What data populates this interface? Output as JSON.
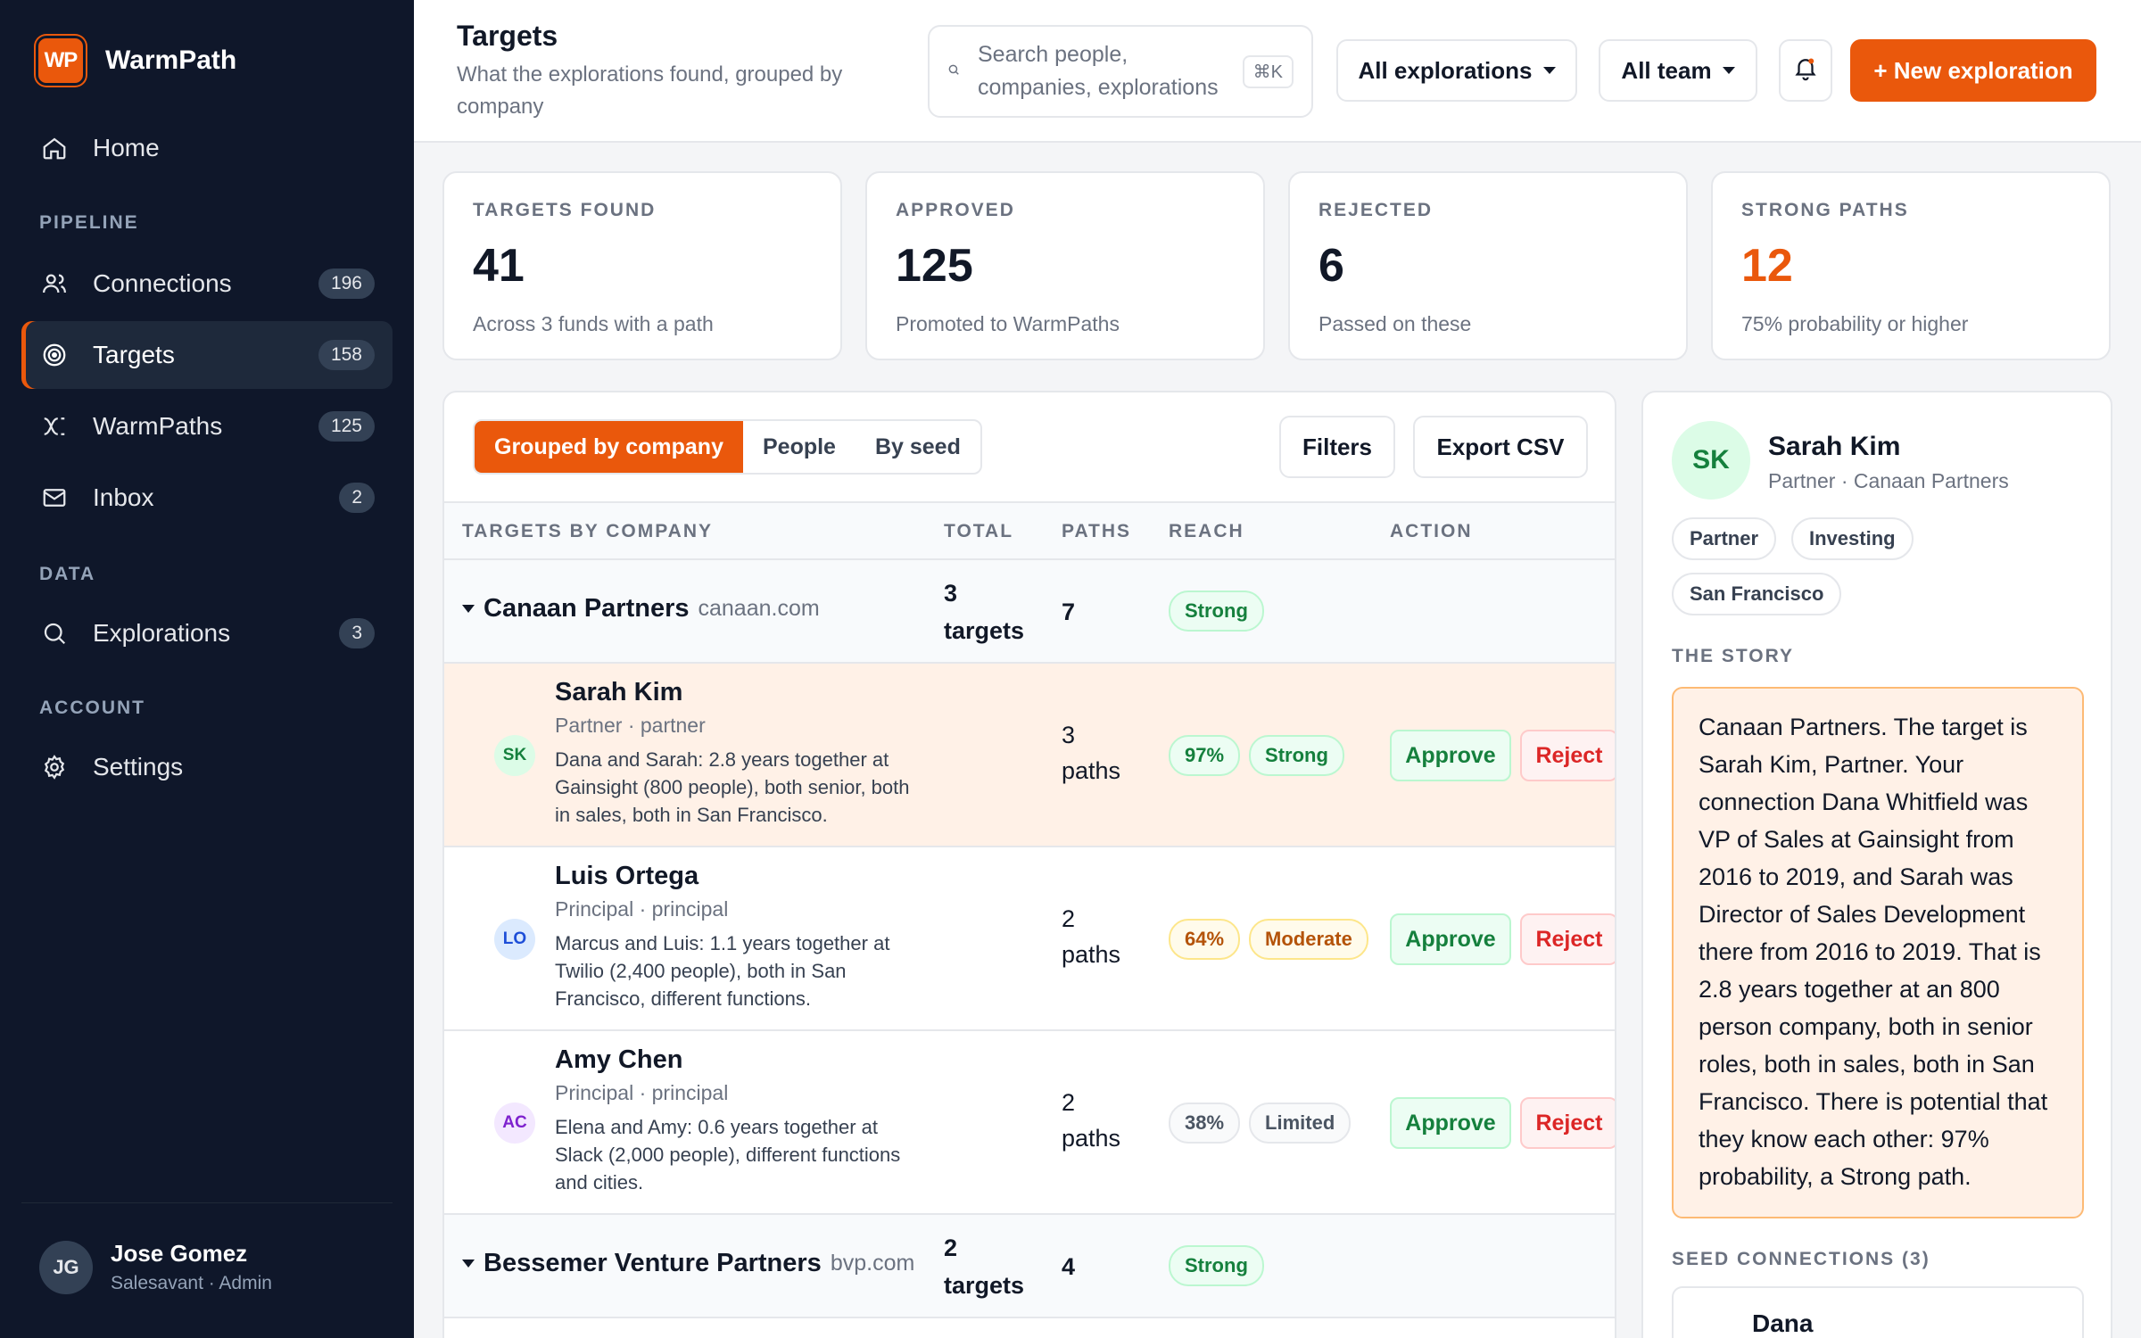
{
  "brand": {
    "logo": "WP",
    "name": "WarmPath"
  },
  "nav": {
    "home": {
      "label": "Home",
      "icon": "home-icon"
    },
    "pipeline_section": "PIPELINE",
    "connections": {
      "label": "Connections",
      "count": "196",
      "icon": "users-icon"
    },
    "targets": {
      "label": "Targets",
      "count": "158",
      "icon": "target-icon"
    },
    "warmpaths": {
      "label": "WarmPaths",
      "count": "125",
      "icon": "paths-icon"
    },
    "inbox": {
      "label": "Inbox",
      "count": "2",
      "icon": "mail-icon"
    },
    "data_section": "DATA",
    "explorations": {
      "label": "Explorations",
      "count": "3",
      "icon": "search-icon"
    },
    "account_section": "ACCOUNT",
    "settings": {
      "label": "Settings",
      "icon": "gear-icon"
    }
  },
  "user": {
    "initials": "JG",
    "name": "Jose Gomez",
    "role": "Salesavant · Admin"
  },
  "header": {
    "title": "Targets",
    "subtitle": "What the explorations found, grouped by company",
    "search_placeholder": "Search people, companies, explorations",
    "search_shortcut": "⌘K",
    "explorations_filter": "All explorations",
    "team_filter": "All team",
    "new_button": "+ New exploration"
  },
  "stats": [
    {
      "label": "TARGETS FOUND",
      "value": "41",
      "note": "Across 3 funds with a path"
    },
    {
      "label": "APPROVED",
      "value": "125",
      "note": "Promoted to WarmPaths"
    },
    {
      "label": "REJECTED",
      "value": "6",
      "note": "Passed on these"
    },
    {
      "label": "STRONG PATHS",
      "value": "12",
      "note": "75% probability or higher"
    }
  ],
  "accent_color": "#ea580c",
  "table": {
    "views": [
      "Grouped by company",
      "People",
      "By seed"
    ],
    "filters_label": "Filters",
    "export_label": "Export CSV",
    "columns": [
      "TARGETS BY COMPANY",
      "TOTAL",
      "PATHS",
      "REACH",
      "ACTION"
    ],
    "approve_label": "Approve",
    "reject_label": "Reject",
    "groups": [
      {
        "name": "Canaan Partners",
        "domain": "canaan.com",
        "total_num": "3",
        "total_unit": "targets",
        "paths": "7",
        "reach": "Strong"
      },
      {
        "name": "Bessemer Venture Partners",
        "domain": "bvp.com",
        "total_num": "2",
        "total_unit": "targets",
        "paths": "4",
        "reach": "Strong"
      }
    ],
    "rows": [
      {
        "initials": "SK",
        "name": "Sarah Kim",
        "role": "Partner · partner",
        "desc": "Dana and Sarah: 2.8 years together at Gainsight (800 people), both senior, both in sales, both in San Francisco.",
        "paths_num": "3",
        "paths_unit": "paths",
        "prob": "97%",
        "strength": "Strong"
      },
      {
        "initials": "LO",
        "name": "Luis Ortega",
        "role": "Principal · principal",
        "desc": "Marcus and Luis: 1.1 years together at Twilio (2,400 people), both in San Francisco, different functions.",
        "paths_num": "2",
        "paths_unit": "paths",
        "prob": "64%",
        "strength": "Moderate"
      },
      {
        "initials": "AC",
        "name": "Amy Chen",
        "role": "Principal · principal",
        "desc": "Elena and Amy: 0.6 years together at Slack (2,000 people), different functions and cities.",
        "paths_num": "2",
        "paths_unit": "paths",
        "prob": "38%",
        "strength": "Limited"
      }
    ]
  },
  "detail": {
    "initials": "SK",
    "name": "Sarah Kim",
    "role": "Partner · Canaan Partners",
    "tags": [
      "Partner",
      "Investing",
      "San Francisco"
    ],
    "story_heading": "THE STORY",
    "story": "Canaan Partners. The target is Sarah Kim, Partner. Your connection Dana Whitfield was VP of Sales at Gainsight from 2016 to 2019, and Sarah was Director of Sales Development there from 2016 to 2019. That is 2.8 years together at an 800 person company, both in senior roles, both in sales, both in San Francisco. There is potential that they know each other: 97% probability, a Strong path.",
    "seed_heading": "SEED CONNECTIONS (3)",
    "seed_first": "Dana"
  }
}
